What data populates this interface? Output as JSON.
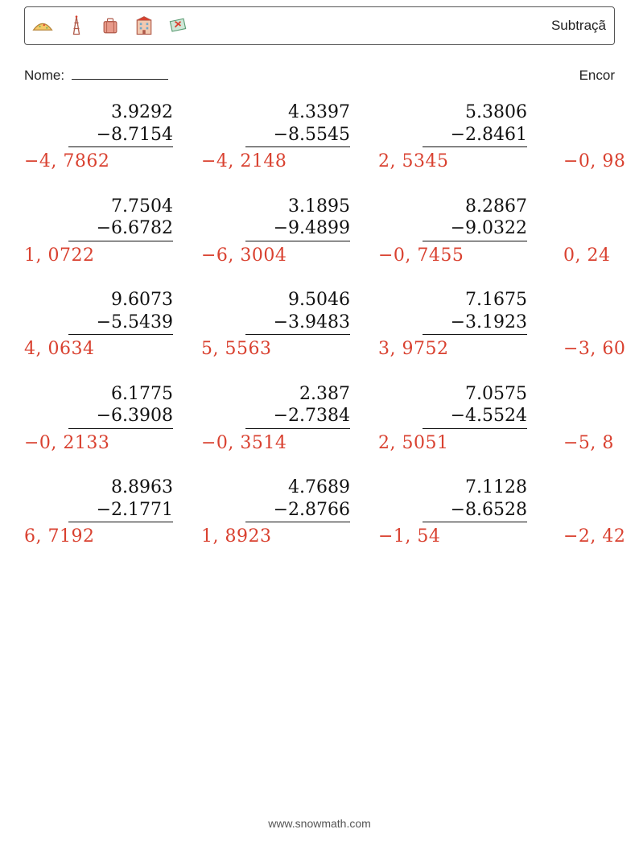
{
  "header": {
    "title": "Subtraçã",
    "icons": [
      "taco",
      "tower",
      "suitcase",
      "hotel",
      "ticket"
    ]
  },
  "nome_label": "Nome:",
  "right_label": "Encor",
  "footer": "www.snowmath.com",
  "colors": {
    "text": "#111111",
    "answer": "#d94130",
    "border": "#555555",
    "background": "#ffffff"
  },
  "typography": {
    "problem_font": "serif",
    "problem_fontsize_pt": 17,
    "header_fontsize_pt": 13,
    "label_fontsize_pt": 13
  },
  "problems": [
    [
      {
        "minuend": "3.9292",
        "subtrahend": "−8.7154",
        "answer": "−4, 7862"
      },
      {
        "minuend": "4.3397",
        "subtrahend": "−8.5545",
        "answer": "−4, 2148"
      },
      {
        "minuend": "5.3806",
        "subtrahend": "−2.8461",
        "answer": "2, 5345"
      },
      {
        "minuend": "",
        "subtrahend": "",
        "answer": "−0, 98"
      }
    ],
    [
      {
        "minuend": "7.7504",
        "subtrahend": "−6.6782",
        "answer": "1, 0722"
      },
      {
        "minuend": "3.1895",
        "subtrahend": "−9.4899",
        "answer": "−6, 3004"
      },
      {
        "minuend": "8.2867",
        "subtrahend": "−9.0322",
        "answer": "−0, 7455"
      },
      {
        "minuend": "",
        "subtrahend": "",
        "answer": "0, 24"
      }
    ],
    [
      {
        "minuend": "9.6073",
        "subtrahend": "−5.5439",
        "answer": "4, 0634"
      },
      {
        "minuend": "9.5046",
        "subtrahend": "−3.9483",
        "answer": "5, 5563"
      },
      {
        "minuend": "7.1675",
        "subtrahend": "−3.1923",
        "answer": "3, 9752"
      },
      {
        "minuend": "",
        "subtrahend": "",
        "answer": "−3, 60"
      }
    ],
    [
      {
        "minuend": "6.1775",
        "subtrahend": "−6.3908",
        "answer": "−0, 2133"
      },
      {
        "minuend": "2.387",
        "subtrahend": "−2.7384",
        "answer": "−0, 3514"
      },
      {
        "minuend": "7.0575",
        "subtrahend": "−4.5524",
        "answer": "2, 5051"
      },
      {
        "minuend": "",
        "subtrahend": "",
        "answer": "−5, 8"
      }
    ],
    [
      {
        "minuend": "8.8963",
        "subtrahend": "−2.1771",
        "answer": "6, 7192"
      },
      {
        "minuend": "4.7689",
        "subtrahend": "−2.8766",
        "answer": "1, 8923"
      },
      {
        "minuend": "7.1128",
        "subtrahend": "−8.6528",
        "answer": "−1, 54"
      },
      {
        "minuend": "",
        "subtrahend": "",
        "answer": "−2, 42"
      }
    ]
  ]
}
